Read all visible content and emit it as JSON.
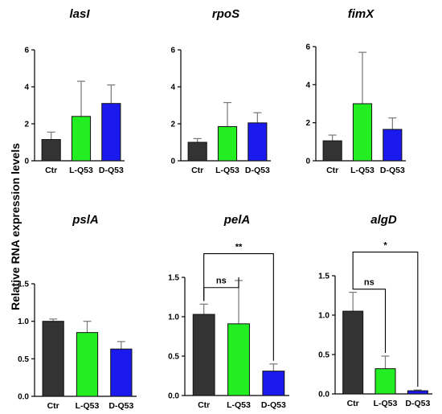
{
  "figure": {
    "ylabel": "Relative RNA expression levels"
  },
  "colors": {
    "Ctr": "#333333",
    "L-Q53": "#22ee22",
    "D-Q53": "#1a1aee",
    "axis": "#000000",
    "error": "#777777"
  },
  "chart_data": [
    {
      "type": "bar",
      "title": "lasI",
      "categories": [
        "Ctr",
        "L-Q53",
        "D-Q53"
      ],
      "values": [
        1.15,
        2.4,
        3.1
      ],
      "errors": [
        0.4,
        1.9,
        1.0
      ],
      "ylim": [
        0,
        6
      ],
      "yticks": [
        "0",
        "2",
        "4",
        "6"
      ],
      "ytick_values": [
        0,
        2,
        4,
        6
      ],
      "significance": []
    },
    {
      "type": "bar",
      "title": "rpoS",
      "categories": [
        "Ctr",
        "L-Q53",
        "D-Q53"
      ],
      "values": [
        1.0,
        1.85,
        2.05
      ],
      "errors": [
        0.2,
        1.3,
        0.55
      ],
      "ylim": [
        0,
        6
      ],
      "yticks": [
        "0",
        "2",
        "4",
        "6"
      ],
      "ytick_values": [
        0,
        2,
        4,
        6
      ],
      "significance": []
    },
    {
      "type": "bar",
      "title": "fimX",
      "categories": [
        "Ctr",
        "L-Q53",
        "D-Q53"
      ],
      "values": [
        1.05,
        3.0,
        1.65
      ],
      "errors": [
        0.3,
        2.7,
        0.6
      ],
      "ylim": [
        0,
        6
      ],
      "yticks": [
        "0",
        "2",
        "4",
        "6"
      ],
      "ytick_values": [
        0,
        2,
        4,
        6
      ],
      "significance": []
    },
    {
      "type": "bar",
      "title": "pslA",
      "categories": [
        "Ctr",
        "L-Q53",
        "D-Q53"
      ],
      "values": [
        1.0,
        0.85,
        0.63
      ],
      "errors": [
        0.03,
        0.15,
        0.1
      ],
      "ylim": [
        0,
        1.5
      ],
      "yticks": [
        "0.0",
        "0.5",
        "1.0",
        "1.5"
      ],
      "ytick_values": [
        0,
        0.5,
        1.0,
        1.5
      ],
      "significance": []
    },
    {
      "type": "bar",
      "title": "pelA",
      "categories": [
        "Ctr",
        "L-Q53",
        "D-Q53"
      ],
      "values": [
        1.03,
        0.91,
        0.31
      ],
      "errors": [
        0.13,
        0.55,
        0.09
      ],
      "ylim": [
        0,
        1.5
      ],
      "yticks": [
        "0.0",
        "0.5",
        "1.0",
        "1.5"
      ],
      "ytick_values": [
        0,
        0.5,
        1.0,
        1.5
      ],
      "significance": [
        {
          "from": 0,
          "to": 1,
          "label": "ns",
          "level": 1.37
        },
        {
          "from": 0,
          "to": 2,
          "label": "**",
          "level": 1.8
        }
      ]
    },
    {
      "type": "bar",
      "title": "algD",
      "categories": [
        "Ctr",
        "L-Q53",
        "D-Q53"
      ],
      "values": [
        1.05,
        0.32,
        0.04
      ],
      "errors": [
        0.24,
        0.16,
        0.01
      ],
      "ylim": [
        0,
        1.5
      ],
      "yticks": [
        "0.0",
        "0.5",
        "1.0",
        "1.5"
      ],
      "ytick_values": [
        0,
        0.5,
        1.0,
        1.5
      ],
      "significance": [
        {
          "from": 0,
          "to": 1,
          "label": "ns",
          "level": 1.33
        },
        {
          "from": 0,
          "to": 2,
          "label": "*",
          "level": 1.8
        }
      ]
    }
  ]
}
